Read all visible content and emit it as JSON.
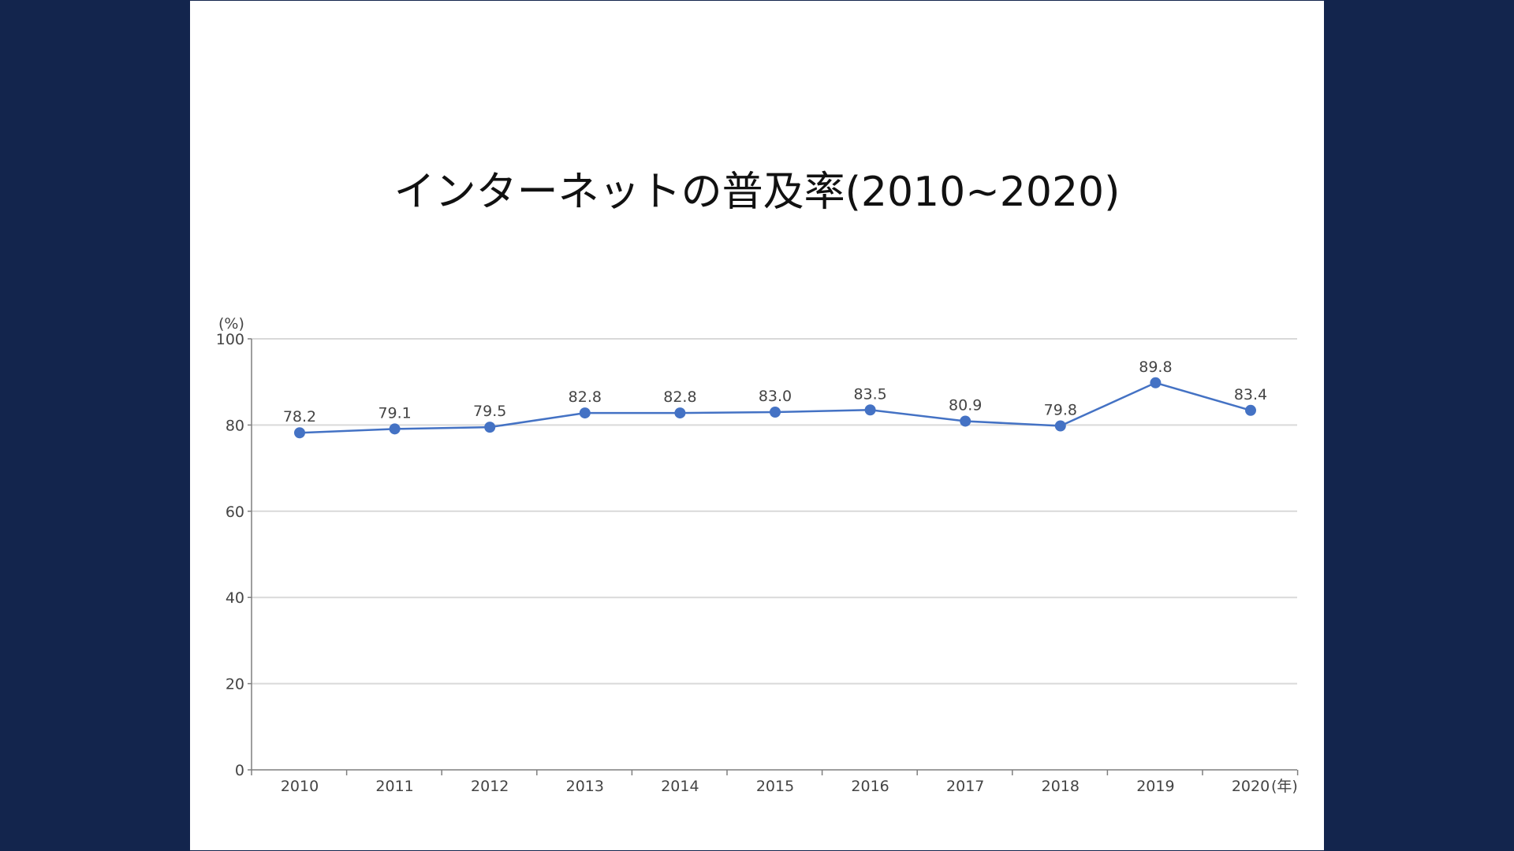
{
  "chart_data": {
    "type": "line",
    "title": "インターネットの普及率(2010~2020)",
    "ylabel": "(%)",
    "xlabel": "(年)",
    "ylim": [
      0,
      100
    ],
    "yticks": [
      0,
      20,
      40,
      60,
      80,
      100
    ],
    "categories": [
      "2010",
      "2011",
      "2012",
      "2013",
      "2014",
      "2015",
      "2016",
      "2017",
      "2018",
      "2019",
      "2020"
    ],
    "series": [
      {
        "values": [
          78.2,
          79.1,
          79.5,
          82.8,
          82.8,
          83.0,
          83.5,
          80.9,
          79.8,
          89.8,
          83.4
        ],
        "labels": [
          "78.2",
          "79.1",
          "79.5",
          "82.8",
          "82.8",
          "83.0",
          "83.5",
          "80.9",
          "79.8",
          "89.8",
          "83.4"
        ],
        "color": "#4472c4"
      }
    ],
    "grid": true,
    "legend": "none"
  },
  "colors": {
    "background": "#13254d",
    "slide": "#ffffff",
    "grid": "#d9d9d9",
    "axis": "#7f7f7f"
  }
}
